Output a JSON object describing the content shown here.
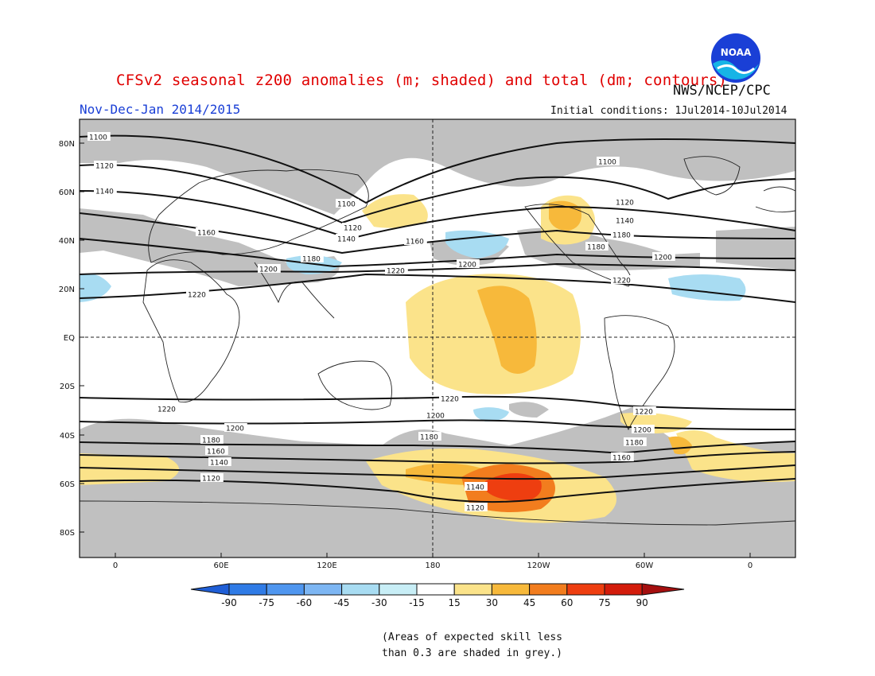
{
  "title": "CFSv2 seasonal z200 anomalies (m; shaded) and total (dm; contours)",
  "period": "Nov-Dec-Jan 2014/2015",
  "agency": "NWS/NCEP/CPC",
  "logo_text": "NOAA",
  "initial_conditions": "Initial conditions: 1Jul2014-10Jul2014",
  "lat_labels": [
    "80N",
    "60N",
    "40N",
    "20N",
    "EQ",
    "20S",
    "40S",
    "60S",
    "80S"
  ],
  "lon_labels": [
    "0",
    "60E",
    "120E",
    "180",
    "120W",
    "60W",
    "0"
  ],
  "contour_labels": [
    "1100",
    "1120",
    "1140",
    "1160",
    "1180",
    "1200",
    "1220"
  ],
  "colorbar": {
    "ticks": [
      "-90",
      "-75",
      "-60",
      "-45",
      "-30",
      "-15",
      "15",
      "30",
      "45",
      "60",
      "75",
      "90"
    ],
    "colors": [
      "#1f5ed6",
      "#2f7be6",
      "#4f96ef",
      "#7db6f3",
      "#a8dcf2",
      "#c8eef6",
      "#ffffff",
      "#fbe38a",
      "#f7b93b",
      "#f27d1e",
      "#ee3e10",
      "#d31c0b",
      "#a50f0f"
    ]
  },
  "note": [
    "(Areas of expected skill less",
    "than 0.3 are shaded in grey.)"
  ]
}
